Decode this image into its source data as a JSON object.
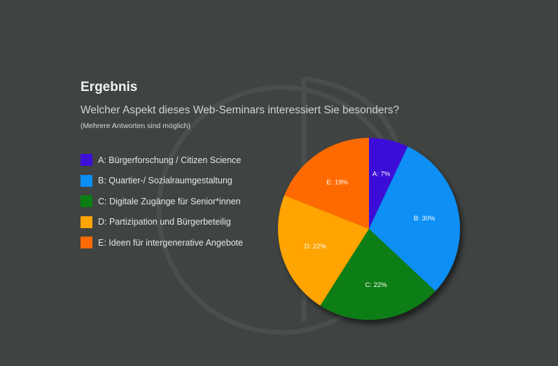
{
  "header": {
    "title": "Ergebnis",
    "question": "Welcher Aspekt dieses Web-Seminars interessiert Sie besonders?",
    "note": "(Mehrere Antworten sind möglich)"
  },
  "chart_data": {
    "type": "pie",
    "title": "Ergebnis",
    "subtitle": "Welcher Aspekt dieses Web-Seminars interessiert Sie besonders?",
    "categories": [
      "A: Bürgerforschung / Citizen Science",
      "B: Quartier-/ Sozialraumgestaltung",
      "C: Digitale Zugänge für Senior*innen",
      "D: Partizipation und Bürgerbeteilig",
      "E: Ideen für intergenerative Angebote"
    ],
    "values": [
      7,
      30,
      22,
      22,
      19
    ],
    "slice_labels": [
      "A: 7%",
      "B: 30%",
      "C: 22%",
      "D: 22%",
      "E: 19%"
    ],
    "colors": [
      "#3d10d8",
      "#0a8ff5",
      "#0a7e13",
      "#ffa400",
      "#ff6a00"
    ],
    "legend_position": "left"
  }
}
